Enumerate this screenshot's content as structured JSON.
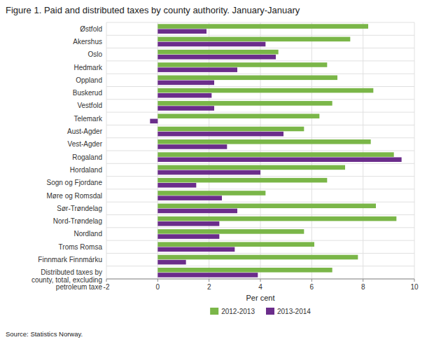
{
  "chart_data": {
    "type": "bar",
    "orientation": "horizontal",
    "title": "Figure 1. Paid and distributed taxes by county authority. January-January",
    "categories": [
      "Østfold",
      "Akershus",
      "Oslo",
      "Hedmark",
      "Oppland",
      "Buskerud",
      "Vestfold",
      "Telemark",
      "Aust-Agder",
      "Vest-Agder",
      "Rogaland",
      "Hordaland",
      "Sogn og Fjordane",
      "Møre og Romsdal",
      "Sør-Trøndelag",
      "Nord-Trøndelag",
      "Nordland",
      "Troms Romsa",
      "Finnmark Finnmárku",
      "Distributed taxes by\ncounty, total, excluding\npetroleum taxe"
    ],
    "series": [
      {
        "name": "2012-2013",
        "color": "#7ab648",
        "values": [
          8.2,
          7.5,
          4.7,
          6.6,
          7.0,
          8.4,
          6.8,
          6.3,
          5.7,
          8.3,
          9.2,
          7.3,
          6.6,
          4.2,
          8.5,
          9.3,
          5.7,
          6.1,
          7.8,
          6.8
        ]
      },
      {
        "name": "2013-2014",
        "color": "#6b2d8b",
        "values": [
          1.9,
          4.2,
          4.6,
          3.1,
          2.2,
          2.1,
          2.2,
          -0.3,
          4.9,
          2.7,
          9.5,
          4.0,
          1.5,
          2.5,
          3.1,
          2.4,
          2.4,
          3.0,
          1.1,
          3.9
        ]
      }
    ],
    "x_label": "Per cent",
    "xlim": [
      -2,
      10
    ],
    "xticks": [
      -2,
      0,
      2,
      4,
      6,
      8,
      10
    ],
    "grid": true,
    "legend": "bottom",
    "annotations": [
      "Source: Statistics Norway."
    ]
  }
}
